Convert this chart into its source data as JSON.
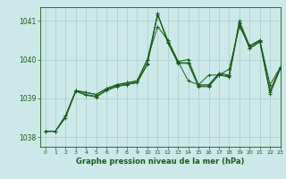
{
  "background_color": "#cce8e8",
  "grid_color": "#aacccc",
  "line_color": "#1a5c1a",
  "xlabel": "Graphe pression niveau de la mer (hPa)",
  "xlim": [
    -0.5,
    23
  ],
  "ylim": [
    1037.75,
    1041.35
  ],
  "yticks": [
    1038,
    1039,
    1040,
    1041
  ],
  "xticks": [
    0,
    1,
    2,
    3,
    4,
    5,
    6,
    7,
    8,
    9,
    10,
    11,
    12,
    13,
    14,
    15,
    16,
    17,
    18,
    19,
    20,
    21,
    22,
    23
  ],
  "series": [
    [
      1038.15,
      1038.15,
      1038.55,
      1039.2,
      1039.15,
      1039.1,
      1039.25,
      1039.35,
      1039.4,
      1039.45,
      1040.0,
      1040.85,
      1040.5,
      1039.95,
      1039.45,
      1039.35,
      1039.6,
      1039.6,
      1039.75,
      1040.85,
      1040.35,
      1040.5,
      1039.35,
      1039.8
    ],
    [
      1038.15,
      1038.15,
      1038.55,
      1039.2,
      1039.15,
      1039.1,
      1039.25,
      1039.35,
      1039.4,
      1039.45,
      1040.0,
      1041.15,
      1040.5,
      1039.95,
      1040.0,
      1039.35,
      1039.35,
      1039.65,
      1039.6,
      1041.0,
      1040.35,
      1040.5,
      1039.2,
      1039.8
    ],
    [
      1038.15,
      1038.15,
      1038.55,
      1039.2,
      1039.1,
      1039.05,
      1039.22,
      1039.32,
      1039.37,
      1039.42,
      1039.9,
      1041.18,
      1040.45,
      1039.92,
      1039.92,
      1039.32,
      1039.32,
      1039.62,
      1039.57,
      1040.95,
      1040.3,
      1040.48,
      1039.15,
      1039.78
    ],
    [
      1038.15,
      1038.15,
      1038.5,
      1039.18,
      1039.08,
      1039.03,
      1039.2,
      1039.3,
      1039.35,
      1039.4,
      1039.87,
      1041.18,
      1040.43,
      1039.9,
      1039.9,
      1039.3,
      1039.3,
      1039.6,
      1039.55,
      1040.93,
      1040.28,
      1040.45,
      1039.12,
      1039.75
    ]
  ]
}
